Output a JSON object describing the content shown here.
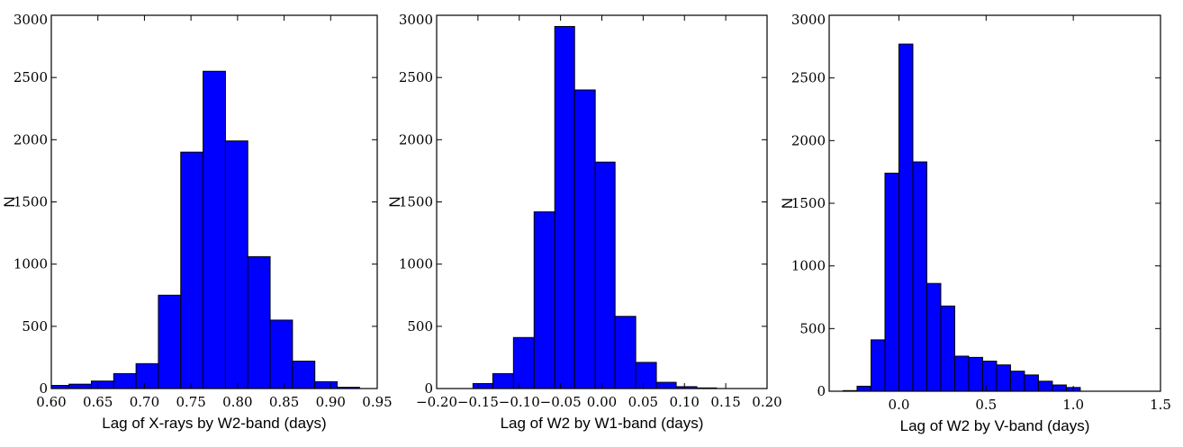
{
  "chart_data": [
    {
      "type": "bar",
      "xlabel": "Lag of X-rays by W2-band (days)",
      "ylabel": "N",
      "xlim": [
        0.6,
        0.95
      ],
      "ylim": [
        0,
        3000
      ],
      "xticks": [
        0.6,
        0.65,
        0.7,
        0.75,
        0.8,
        0.85,
        0.9,
        0.95
      ],
      "xtick_labels": [
        "0.60",
        "0.65",
        "0.70",
        "0.75",
        "0.80",
        "0.85",
        "0.90",
        "0.95"
      ],
      "yticks": [
        0,
        500,
        1000,
        1500,
        2000,
        2500,
        3000
      ],
      "ytick_labels": [
        "0",
        "500",
        "1000",
        "1500",
        "2000",
        "2500",
        "3000"
      ],
      "bin_edges": [
        0.595,
        0.619,
        0.643,
        0.667,
        0.691,
        0.715,
        0.739,
        0.763,
        0.787,
        0.811,
        0.835,
        0.859,
        0.883,
        0.907,
        0.931
      ],
      "values": [
        25,
        35,
        60,
        120,
        200,
        750,
        1900,
        2550,
        1990,
        1060,
        550,
        220,
        55,
        10
      ]
    },
    {
      "type": "bar",
      "xlabel": "Lag of W2 by W1-band (days)",
      "ylabel": "N",
      "xlim": [
        -0.2,
        0.2
      ],
      "ylim": [
        0,
        3000
      ],
      "xticks": [
        -0.2,
        -0.15,
        -0.1,
        -0.05,
        0.0,
        0.05,
        0.1,
        0.15,
        0.2
      ],
      "xtick_labels": [
        "−0.20",
        "−0.15",
        "−0.10",
        "−0.05",
        "0.00",
        "0.05",
        "0.10",
        "0.15",
        "0.20"
      ],
      "yticks": [
        0,
        500,
        1000,
        1500,
        2000,
        2500,
        3000
      ],
      "ytick_labels": [
        "0",
        "500",
        "1000",
        "1500",
        "2000",
        "2500",
        "3000"
      ],
      "bin_edges": [
        -0.156,
        -0.132,
        -0.107,
        -0.082,
        -0.057,
        -0.033,
        -0.008,
        0.016,
        0.041,
        0.066,
        0.09,
        0.115,
        0.139
      ],
      "values": [
        40,
        120,
        410,
        1420,
        2910,
        2400,
        1820,
        580,
        210,
        50,
        15,
        5
      ]
    },
    {
      "type": "bar",
      "xlabel": "Lag of W2 by V-band (days)",
      "ylabel": "N",
      "xlim": [
        -0.4,
        1.5
      ],
      "ylim": [
        0,
        3000
      ],
      "xticks": [
        0.0,
        0.5,
        1.0,
        1.5
      ],
      "xtick_labels": [
        "0.0",
        "0.5",
        "1.0",
        "1.5"
      ],
      "yticks": [
        0,
        500,
        1000,
        1500,
        2000,
        2500,
        3000
      ],
      "ytick_labels": [
        "0",
        "500",
        "1000",
        "1500",
        "2000",
        "2500",
        "3000"
      ],
      "bin_edges": [
        -0.4,
        -0.32,
        -0.24,
        -0.16,
        -0.08,
        0.0,
        0.08,
        0.16,
        0.24,
        0.32,
        0.4,
        0.48,
        0.56,
        0.64,
        0.72,
        0.8,
        0.88,
        0.96,
        1.04,
        1.12,
        1.2,
        1.28,
        1.36,
        1.44
      ],
      "values": [
        0,
        5,
        40,
        410,
        1740,
        2770,
        1830,
        860,
        680,
        280,
        270,
        240,
        210,
        160,
        130,
        80,
        50,
        30,
        0,
        0,
        0,
        0,
        0
      ]
    }
  ]
}
